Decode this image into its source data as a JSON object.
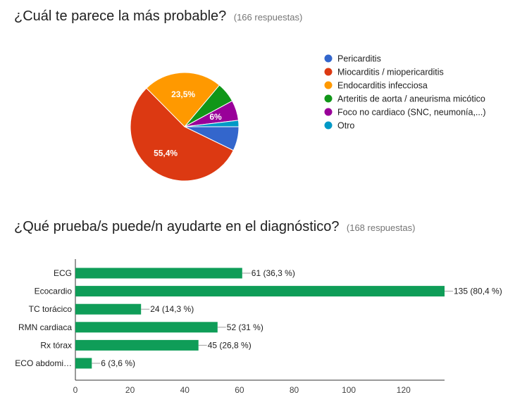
{
  "questions": [
    {
      "title": "¿Cuál te parece la más probable?",
      "responses": "(166 respuestas)"
    },
    {
      "title": "¿Qué prueba/s puede/n ayudarte en el diagnóstico?",
      "responses": "(168 respuestas)"
    }
  ],
  "chart_data": [
    {
      "type": "pie",
      "title": "¿Cuál te parece la más probable?",
      "legend_position": "right",
      "slices": [
        {
          "name": "Pericarditis",
          "value": 7.2,
          "color": "#3366cc",
          "label": ""
        },
        {
          "name": "Miocarditis / miopericarditis",
          "value": 55.4,
          "color": "#dc3912",
          "label": "55,4%"
        },
        {
          "name": "Endocarditis infecciosa",
          "value": 23.5,
          "color": "#ff9900",
          "label": "23,5%"
        },
        {
          "name": "Arteritis de aorta / aneurisma micótico",
          "value": 6.0,
          "color": "#109618",
          "label": ""
        },
        {
          "name": "Foco no cardiaco (SNC, neumonía,...)",
          "value": 6.0,
          "color": "#990099",
          "label": "6%"
        },
        {
          "name": "Otro",
          "value": 1.9,
          "color": "#0099c6",
          "label": ""
        }
      ]
    },
    {
      "type": "bar",
      "orientation": "horizontal",
      "title": "¿Qué prueba/s puede/n ayudarte en el diagnóstico?",
      "color": "#0f9d58",
      "categories": [
        "ECG",
        "Ecocardio",
        "TC torácico",
        "RMN cardiaca",
        "Rx tórax",
        "ECO abdomi…"
      ],
      "values": [
        61,
        135,
        24,
        52,
        45,
        6
      ],
      "value_labels": [
        "61 (36,3 %)",
        "135 (80,4 %)",
        "24 (14,3 %)",
        "52 (31 %)",
        "45 (26,8 %)",
        "6 (3,6 %)"
      ],
      "xlim": [
        0,
        135
      ],
      "xticks": [
        0,
        20,
        40,
        60,
        80,
        100,
        120
      ],
      "grid": false
    }
  ]
}
